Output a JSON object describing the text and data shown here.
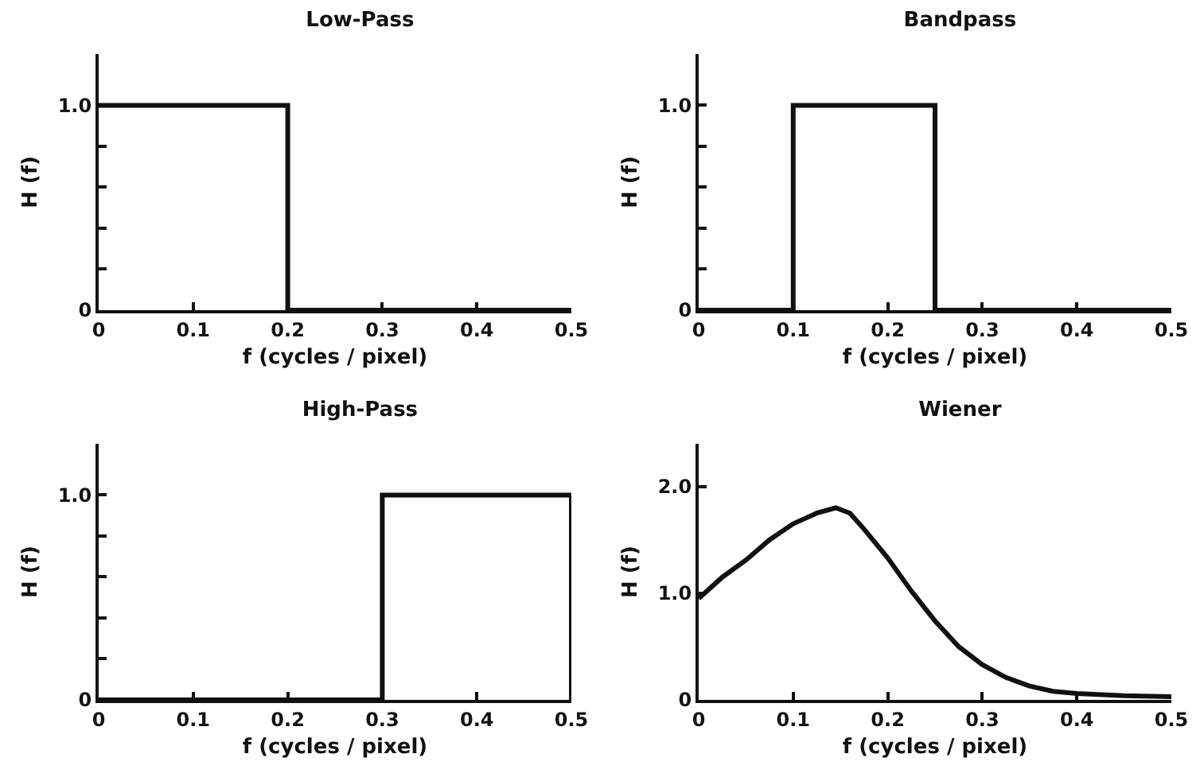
{
  "chart_data": [
    {
      "type": "line",
      "title": "Low-Pass",
      "xlabel": "f (cycles / pixel)",
      "ylabel": "H (f)",
      "xlim": [
        0,
        0.5
      ],
      "xticks": [
        0,
        0.1,
        0.2,
        0.3,
        0.4,
        0.5
      ],
      "ylim": [
        0,
        1.25
      ],
      "yticks": [
        {
          "value": 0,
          "label": "0"
        },
        {
          "value": 0.2,
          "label": null
        },
        {
          "value": 0.4,
          "label": null
        },
        {
          "value": 0.6,
          "label": null
        },
        {
          "value": 0.8,
          "label": null
        },
        {
          "value": 1,
          "label": "1.0"
        }
      ],
      "grid": false,
      "marker": "none",
      "line_style": "solid",
      "series": [
        {
          "color": "#111111",
          "x": [
            0,
            0.2,
            0.2,
            0.5
          ],
          "values": [
            1,
            1,
            0,
            0
          ]
        }
      ]
    },
    {
      "type": "line",
      "title": "Bandpass",
      "xlabel": "f (cycles / pixel)",
      "ylabel": "H (f)",
      "xlim": [
        0,
        0.5
      ],
      "xticks": [
        0,
        0.1,
        0.2,
        0.3,
        0.4,
        0.5
      ],
      "ylim": [
        0,
        1.25
      ],
      "yticks": [
        {
          "value": 0,
          "label": "0"
        },
        {
          "value": 0.2,
          "label": null
        },
        {
          "value": 0.4,
          "label": null
        },
        {
          "value": 0.6,
          "label": null
        },
        {
          "value": 0.8,
          "label": null
        },
        {
          "value": 1,
          "label": "1.0"
        }
      ],
      "grid": false,
      "marker": "none",
      "line_style": "solid",
      "series": [
        {
          "color": "#111111",
          "x": [
            0,
            0.1,
            0.1,
            0.25,
            0.25,
            0.5
          ],
          "values": [
            0,
            0,
            1,
            1,
            0,
            0
          ]
        }
      ]
    },
    {
      "type": "line",
      "title": "High-Pass",
      "xlabel": "f (cycles / pixel)",
      "ylabel": "H (f)",
      "xlim": [
        0,
        0.5
      ],
      "xticks": [
        0,
        0.1,
        0.2,
        0.3,
        0.4,
        0.5
      ],
      "ylim": [
        0,
        1.25
      ],
      "yticks": [
        {
          "value": 0,
          "label": "0"
        },
        {
          "value": 0.2,
          "label": null
        },
        {
          "value": 0.4,
          "label": null
        },
        {
          "value": 0.6,
          "label": null
        },
        {
          "value": 0.8,
          "label": null
        },
        {
          "value": 1,
          "label": "1.0"
        }
      ],
      "grid": false,
      "marker": "none",
      "line_style": "solid",
      "series": [
        {
          "color": "#111111",
          "x": [
            0,
            0.3,
            0.3,
            0.5,
            0.5
          ],
          "values": [
            0,
            0,
            1,
            1,
            0
          ]
        }
      ]
    },
    {
      "type": "line",
      "title": "Wiener",
      "xlabel": "f (cycles / pixel)",
      "ylabel": "H (f)",
      "xlim": [
        0,
        0.5
      ],
      "xticks": [
        0,
        0.1,
        0.2,
        0.3,
        0.4,
        0.5
      ],
      "ylim": [
        0,
        2.4
      ],
      "yticks": [
        {
          "value": 0,
          "label": "0"
        },
        {
          "value": 1,
          "label": "1.0"
        },
        {
          "value": 2,
          "label": "2.0"
        }
      ],
      "grid": false,
      "marker": "none",
      "line_style": "solid",
      "series": [
        {
          "color": "#111111",
          "x": [
            0,
            0.025,
            0.05,
            0.075,
            0.1,
            0.125,
            0.145,
            0.16,
            0.175,
            0.2,
            0.225,
            0.25,
            0.275,
            0.3,
            0.325,
            0.35,
            0.375,
            0.4,
            0.45,
            0.5
          ],
          "values": [
            0.95,
            1.15,
            1.31,
            1.5,
            1.65,
            1.75,
            1.8,
            1.75,
            1.6,
            1.33,
            1.02,
            0.74,
            0.5,
            0.33,
            0.21,
            0.13,
            0.08,
            0.06,
            0.04,
            0.03
          ]
        }
      ]
    }
  ]
}
